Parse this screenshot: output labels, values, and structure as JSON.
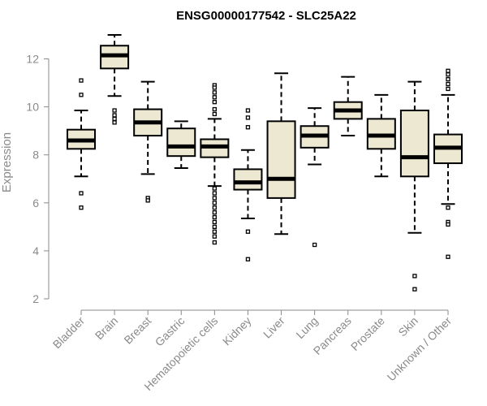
{
  "chart_data": {
    "type": "boxplot",
    "title": "ENSG00000177542 - SLC25A22",
    "xlabel": "",
    "ylabel": "Expression",
    "ylim": [
      2,
      13
    ],
    "yticks": [
      2,
      4,
      6,
      8,
      10,
      12
    ],
    "box_color": "#ede8d2",
    "categories": [
      "Bladder",
      "Brain",
      "Breast",
      "Gastric",
      "Hematopoietic cells",
      "Kidney",
      "Liver",
      "Lung",
      "Pancreas",
      "Prostate",
      "Skin",
      "Unknown / Other"
    ],
    "boxes": [
      {
        "label": "Bladder",
        "lower_whisker": 7.1,
        "q1": 8.25,
        "median": 8.6,
        "q3": 9.05,
        "upper_whisker": 9.85,
        "outliers": [
          11.1,
          10.5,
          6.4,
          5.8
        ]
      },
      {
        "label": "Brain",
        "lower_whisker": 10.45,
        "q1": 11.6,
        "median": 12.15,
        "q3": 12.55,
        "upper_whisker": 13.0,
        "outliers": [
          9.85,
          9.65,
          9.5,
          9.35
        ]
      },
      {
        "label": "Breast",
        "lower_whisker": 7.2,
        "q1": 8.8,
        "median": 9.35,
        "q3": 9.9,
        "upper_whisker": 11.05,
        "outliers": [
          6.2,
          6.1
        ]
      },
      {
        "label": "Gastric",
        "lower_whisker": 7.45,
        "q1": 7.95,
        "median": 8.35,
        "q3": 9.1,
        "upper_whisker": 9.4,
        "outliers": []
      },
      {
        "label": "Hematopoietic cells",
        "lower_whisker": 6.7,
        "q1": 7.9,
        "median": 8.35,
        "q3": 8.65,
        "upper_whisker": 9.5,
        "outliers": [
          10.9,
          10.8,
          10.6,
          10.4,
          10.2,
          9.9,
          9.7,
          6.6,
          6.4,
          6.2,
          6.0,
          5.8,
          5.6,
          5.4,
          5.2,
          5.0,
          4.8,
          4.6,
          4.35
        ]
      },
      {
        "label": "Kidney",
        "lower_whisker": 5.35,
        "q1": 6.55,
        "median": 6.85,
        "q3": 7.4,
        "upper_whisker": 8.2,
        "outliers": [
          9.85,
          9.55,
          9.15,
          4.8,
          3.65
        ]
      },
      {
        "label": "Liver",
        "lower_whisker": 4.7,
        "q1": 6.2,
        "median": 7.0,
        "q3": 9.4,
        "upper_whisker": 11.4,
        "outliers": []
      },
      {
        "label": "Lung",
        "lower_whisker": 7.6,
        "q1": 8.3,
        "median": 8.8,
        "q3": 9.2,
        "upper_whisker": 9.95,
        "outliers": [
          4.25
        ]
      },
      {
        "label": "Pancreas",
        "lower_whisker": 8.8,
        "q1": 9.5,
        "median": 9.85,
        "q3": 10.2,
        "upper_whisker": 11.25,
        "outliers": []
      },
      {
        "label": "Prostate",
        "lower_whisker": 7.1,
        "q1": 8.25,
        "median": 8.8,
        "q3": 9.5,
        "upper_whisker": 10.5,
        "outliers": []
      },
      {
        "label": "Skin",
        "lower_whisker": 4.75,
        "q1": 7.1,
        "median": 7.9,
        "q3": 9.85,
        "upper_whisker": 11.05,
        "outliers": [
          2.95,
          2.4
        ]
      },
      {
        "label": "Unknown / Other",
        "lower_whisker": 5.95,
        "q1": 7.65,
        "median": 8.3,
        "q3": 8.85,
        "upper_whisker": 10.5,
        "outliers": [
          11.5,
          11.35,
          11.15,
          10.95,
          10.75,
          5.8,
          5.2,
          5.1,
          3.75
        ]
      }
    ]
  }
}
